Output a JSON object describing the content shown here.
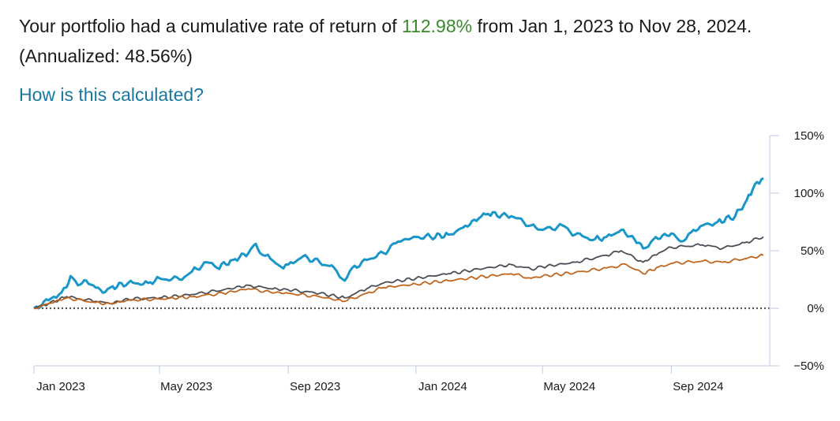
{
  "summary": {
    "prefix": "Your portfolio had a cumulative rate of return of ",
    "return_value": "112.98%",
    "suffix": " from Jan 1, 2023 to Nov 28, 2024. (Annualized: 48.56%)"
  },
  "link_label": "How is this calculated?",
  "colors": {
    "return_green": "#3a8a2a",
    "link_blue": "#1a77a0"
  },
  "chart_data": {
    "type": "line",
    "title": "",
    "xlabel": "",
    "ylabel": "",
    "x_tick_labels": [
      "Jan 2023",
      "May 2023",
      "Sep 2023",
      "Jan 2024",
      "May 2024",
      "Sep 2024"
    ],
    "y_tick_labels": [
      "150%",
      "100%",
      "50%",
      "0%",
      "−50%"
    ],
    "x_range": [
      "2023-01-01",
      "2024-11-28"
    ],
    "ylim": [
      -50,
      150
    ],
    "y_ticks": [
      150,
      100,
      50,
      0,
      -50
    ],
    "zero_line": "dotted",
    "y_axis_position": "right",
    "legend": "none",
    "series": [
      {
        "color": "#1a96c8",
        "points": [
          [
            "2023-01-01",
            0
          ],
          [
            "2023-01-15",
            7
          ],
          [
            "2023-01-25",
            12
          ],
          [
            "2023-02-01",
            18
          ],
          [
            "2023-02-05",
            28
          ],
          [
            "2023-02-12",
            20
          ],
          [
            "2023-02-20",
            24
          ],
          [
            "2023-03-01",
            18
          ],
          [
            "2023-03-10",
            14
          ],
          [
            "2023-03-15",
            18
          ],
          [
            "2023-04-01",
            22
          ],
          [
            "2023-04-20",
            22
          ],
          [
            "2023-05-01",
            26
          ],
          [
            "2023-05-20",
            25
          ],
          [
            "2023-06-01",
            32
          ],
          [
            "2023-06-15",
            40
          ],
          [
            "2023-06-25",
            35
          ],
          [
            "2023-07-10",
            42
          ],
          [
            "2023-07-25",
            48
          ],
          [
            "2023-08-01",
            56
          ],
          [
            "2023-08-05",
            48
          ],
          [
            "2023-08-15",
            43
          ],
          [
            "2023-08-25",
            36
          ],
          [
            "2023-09-01",
            38
          ],
          [
            "2023-09-15",
            45
          ],
          [
            "2023-10-01",
            40
          ],
          [
            "2023-10-15",
            35
          ],
          [
            "2023-10-25",
            24
          ],
          [
            "2023-11-01",
            35
          ],
          [
            "2023-11-15",
            42
          ],
          [
            "2023-12-01",
            48
          ],
          [
            "2023-12-15",
            58
          ],
          [
            "2024-01-01",
            62
          ],
          [
            "2024-01-15",
            62
          ],
          [
            "2024-02-01",
            64
          ],
          [
            "2024-02-15",
            70
          ],
          [
            "2024-03-01",
            78
          ],
          [
            "2024-03-10",
            82
          ],
          [
            "2024-04-01",
            80
          ],
          [
            "2024-04-20",
            72
          ],
          [
            "2024-05-01",
            68
          ],
          [
            "2024-05-20",
            72
          ],
          [
            "2024-06-01",
            64
          ],
          [
            "2024-06-20",
            60
          ],
          [
            "2024-07-01",
            62
          ],
          [
            "2024-07-15",
            68
          ],
          [
            "2024-08-01",
            57
          ],
          [
            "2024-08-05",
            52
          ],
          [
            "2024-08-15",
            60
          ],
          [
            "2024-09-01",
            65
          ],
          [
            "2024-09-10",
            58
          ],
          [
            "2024-09-20",
            66
          ],
          [
            "2024-10-01",
            72
          ],
          [
            "2024-10-15",
            75
          ],
          [
            "2024-11-01",
            80
          ],
          [
            "2024-11-12",
            94
          ],
          [
            "2024-11-20",
            108
          ],
          [
            "2024-11-28",
            113
          ]
        ]
      },
      {
        "color": "#4a4f57",
        "points": [
          [
            "2023-01-01",
            0
          ],
          [
            "2023-01-15",
            4
          ],
          [
            "2023-02-01",
            10
          ],
          [
            "2023-03-01",
            6
          ],
          [
            "2023-03-15",
            4
          ],
          [
            "2023-04-01",
            8
          ],
          [
            "2023-05-01",
            9
          ],
          [
            "2023-06-01",
            12
          ],
          [
            "2023-07-01",
            16
          ],
          [
            "2023-07-25",
            20
          ],
          [
            "2023-08-15",
            17
          ],
          [
            "2023-09-01",
            16
          ],
          [
            "2023-10-01",
            13
          ],
          [
            "2023-10-25",
            9
          ],
          [
            "2023-11-15",
            17
          ],
          [
            "2023-12-01",
            22
          ],
          [
            "2024-01-01",
            26
          ],
          [
            "2024-02-01",
            30
          ],
          [
            "2024-03-01",
            34
          ],
          [
            "2024-04-01",
            38
          ],
          [
            "2024-04-20",
            34
          ],
          [
            "2024-05-01",
            36
          ],
          [
            "2024-06-01",
            40
          ],
          [
            "2024-07-01",
            46
          ],
          [
            "2024-07-15",
            50
          ],
          [
            "2024-08-05",
            40
          ],
          [
            "2024-08-20",
            48
          ],
          [
            "2024-09-01",
            53
          ],
          [
            "2024-10-01",
            55
          ],
          [
            "2024-10-20",
            52
          ],
          [
            "2024-11-10",
            57
          ],
          [
            "2024-11-28",
            62
          ]
        ]
      },
      {
        "color": "#c0661e",
        "points": [
          [
            "2023-01-01",
            0
          ],
          [
            "2023-01-15",
            4
          ],
          [
            "2023-02-01",
            9
          ],
          [
            "2023-03-01",
            5
          ],
          [
            "2023-03-15",
            4
          ],
          [
            "2023-04-01",
            7
          ],
          [
            "2023-05-01",
            8
          ],
          [
            "2023-06-01",
            10
          ],
          [
            "2023-07-01",
            13
          ],
          [
            "2023-07-25",
            17
          ],
          [
            "2023-08-15",
            14
          ],
          [
            "2023-09-01",
            13
          ],
          [
            "2023-10-01",
            10
          ],
          [
            "2023-10-25",
            6
          ],
          [
            "2023-11-15",
            13
          ],
          [
            "2023-12-01",
            18
          ],
          [
            "2024-01-01",
            21
          ],
          [
            "2024-02-01",
            24
          ],
          [
            "2024-03-01",
            27
          ],
          [
            "2024-04-01",
            30
          ],
          [
            "2024-04-20",
            26
          ],
          [
            "2024-05-01",
            28
          ],
          [
            "2024-06-01",
            31
          ],
          [
            "2024-07-01",
            35
          ],
          [
            "2024-07-20",
            38
          ],
          [
            "2024-08-05",
            30
          ],
          [
            "2024-08-20",
            36
          ],
          [
            "2024-09-01",
            39
          ],
          [
            "2024-10-01",
            41
          ],
          [
            "2024-10-20",
            40
          ],
          [
            "2024-11-10",
            43
          ],
          [
            "2024-11-28",
            46
          ]
        ]
      }
    ]
  }
}
